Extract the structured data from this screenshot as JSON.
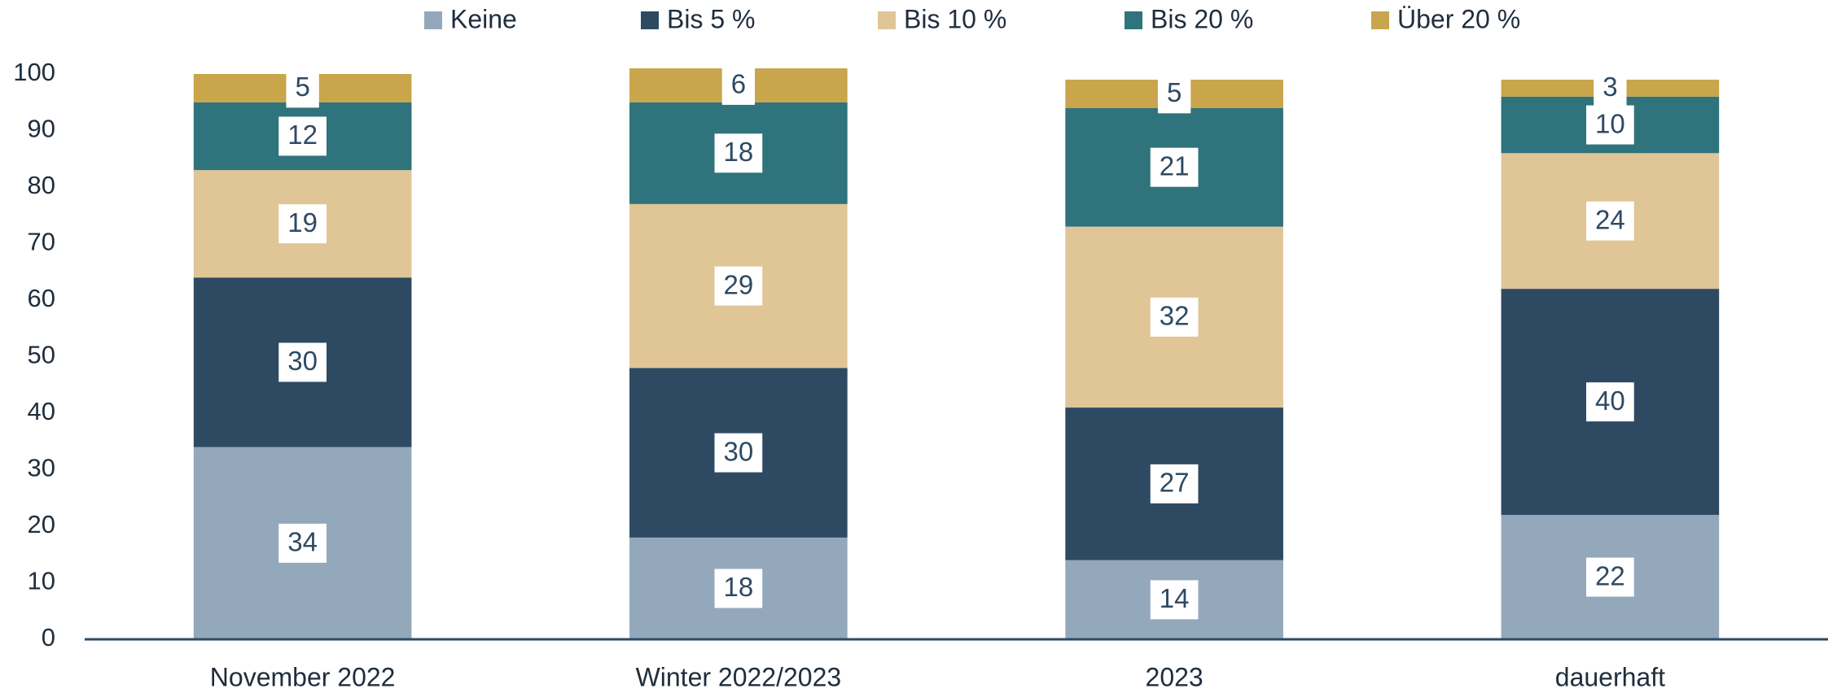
{
  "chart_data": {
    "type": "stacked_bar",
    "categories": [
      "November 2022",
      "Winter 2022/2023",
      "2023",
      "dauerhaft"
    ],
    "series": [
      {
        "name": "Keine",
        "color": "#94a8bc",
        "values": [
          34,
          18,
          14,
          22
        ]
      },
      {
        "name": "Bis 5 %",
        "color": "#2e4a63",
        "values": [
          30,
          30,
          27,
          40
        ]
      },
      {
        "name": "Bis 10 %",
        "color": "#e0c597",
        "values": [
          19,
          29,
          32,
          24
        ]
      },
      {
        "name": "Bis 20 %",
        "color": "#2f737c",
        "values": [
          12,
          18,
          21,
          10
        ]
      },
      {
        "name": "Über 20 %",
        "color": "#c9a54b",
        "values": [
          5,
          6,
          5,
          3
        ]
      }
    ],
    "ylim": [
      0,
      100
    ],
    "yticks": [
      0,
      10,
      20,
      30,
      40,
      50,
      60,
      70,
      80,
      90,
      100
    ],
    "grid": false,
    "legend": "top"
  }
}
